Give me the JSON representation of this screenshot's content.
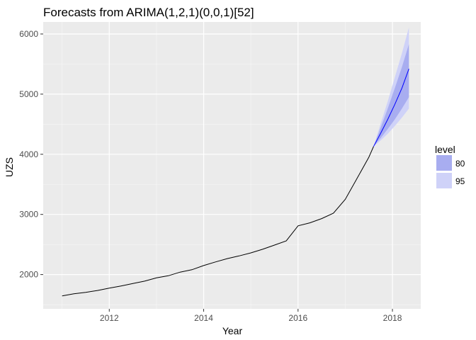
{
  "chart_data": {
    "type": "line",
    "title": "Forecasts from ARIMA(1,2,1)(0,0,1)[52]",
    "xlabel": "Year",
    "ylabel": "UZS",
    "xlim": [
      2010.6,
      2018.6
    ],
    "ylim": [
      1430,
      6200
    ],
    "x_ticks": [
      2012,
      2014,
      2016,
      2018
    ],
    "y_ticks": [
      2000,
      3000,
      4000,
      5000,
      6000
    ],
    "grid": true,
    "legend_position": "right",
    "legend_title": "level",
    "legend": [
      {
        "label": "80",
        "color": "#a8adf0"
      },
      {
        "label": "95",
        "color": "#cfd2f8"
      }
    ],
    "colors": {
      "panel": "#ebebeb",
      "grid": "#ffffff",
      "line": "#000000",
      "forecast_line": "#0000ff",
      "band80": "#a8adf0",
      "band95": "#cfd2f8"
    },
    "series": [
      {
        "values": [
          [
            2011.0,
            1645
          ],
          [
            2011.25,
            1680
          ],
          [
            2011.5,
            1705
          ],
          [
            2011.75,
            1735
          ],
          [
            2012.0,
            1775
          ],
          [
            2012.25,
            1810
          ],
          [
            2012.5,
            1850
          ],
          [
            2012.75,
            1890
          ],
          [
            2013.0,
            1945
          ],
          [
            2013.25,
            1980
          ],
          [
            2013.5,
            2040
          ],
          [
            2013.75,
            2080
          ],
          [
            2014.0,
            2150
          ],
          [
            2014.25,
            2210
          ],
          [
            2014.5,
            2265
          ],
          [
            2014.75,
            2310
          ],
          [
            2015.0,
            2360
          ],
          [
            2015.25,
            2420
          ],
          [
            2015.5,
            2490
          ],
          [
            2015.75,
            2560
          ],
          [
            2016.0,
            2810
          ],
          [
            2016.25,
            2860
          ],
          [
            2016.5,
            2930
          ],
          [
            2016.75,
            3020
          ],
          [
            2017.0,
            3250
          ],
          [
            2017.25,
            3600
          ],
          [
            2017.5,
            3950
          ],
          [
            2017.6,
            4130
          ]
        ]
      },
      {
        "forecast": true,
        "x": [
          2017.6,
          2017.75,
          2017.9,
          2018.05,
          2018.2,
          2018.35
        ],
        "mean": [
          4130,
          4350,
          4580,
          4830,
          5100,
          5420
        ],
        "lo80": [
          4130,
          4270,
          4420,
          4580,
          4760,
          4950
        ],
        "hi80": [
          4130,
          4440,
          4760,
          5100,
          5450,
          5830
        ],
        "lo95": [
          4130,
          4230,
          4340,
          4470,
          4610,
          4760
        ],
        "hi95": [
          4130,
          4510,
          4880,
          5280,
          5680,
          6110
        ]
      }
    ]
  }
}
